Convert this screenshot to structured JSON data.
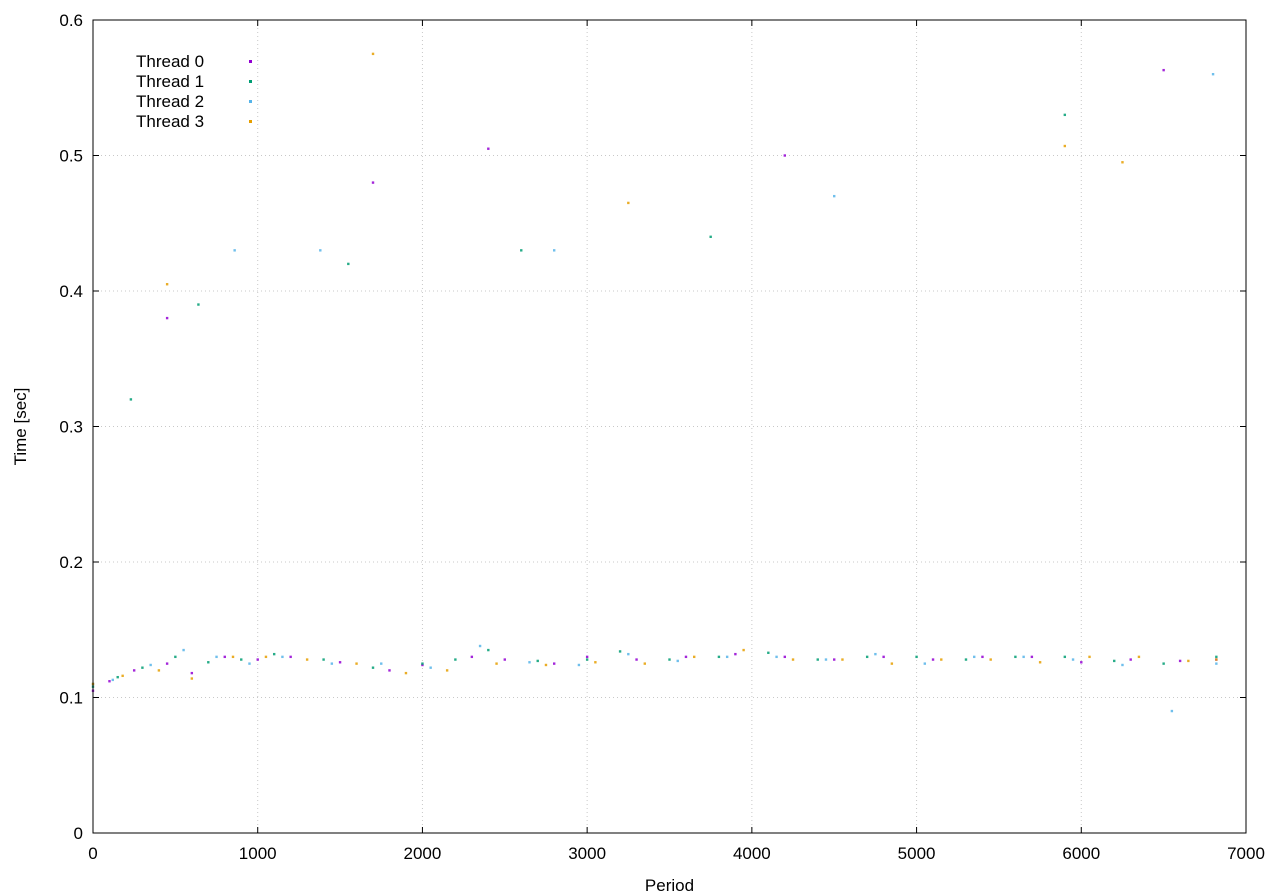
{
  "chart_data": {
    "type": "scatter",
    "title": "",
    "xlabel": "Period",
    "ylabel": "Time [sec]",
    "xlim": [
      0,
      7000
    ],
    "ylim": [
      0,
      0.6
    ],
    "xticks": [
      0,
      1000,
      2000,
      3000,
      4000,
      5000,
      6000,
      7000
    ],
    "yticks": [
      0,
      0.1,
      0.2,
      0.3,
      0.4,
      0.5,
      0.6
    ],
    "xtick_labels": [
      "0",
      "1000",
      "2000",
      "3000",
      "4000",
      "5000",
      "6000",
      "7000"
    ],
    "ytick_labels": [
      "0",
      "0.1",
      "0.2",
      "0.3",
      "0.4",
      "0.5",
      "0.6"
    ],
    "grid": true,
    "legend_position": "top-left",
    "series": [
      {
        "name": "Thread 0",
        "color": "#9400d3",
        "marker": "dot",
        "sample_points": [
          [
            0,
            0.105
          ],
          [
            100,
            0.112
          ],
          [
            250,
            0.12
          ],
          [
            450,
            0.125
          ],
          [
            600,
            0.118
          ],
          [
            800,
            0.13
          ],
          [
            1000,
            0.128
          ],
          [
            1200,
            0.13
          ],
          [
            1500,
            0.126
          ],
          [
            1800,
            0.12
          ],
          [
            2000,
            0.124
          ],
          [
            2300,
            0.13
          ],
          [
            2500,
            0.128
          ],
          [
            2800,
            0.125
          ],
          [
            3000,
            0.13
          ],
          [
            3300,
            0.128
          ],
          [
            3600,
            0.13
          ],
          [
            3900,
            0.132
          ],
          [
            4200,
            0.13
          ],
          [
            4500,
            0.128
          ],
          [
            4800,
            0.13
          ],
          [
            5100,
            0.128
          ],
          [
            5400,
            0.13
          ],
          [
            5700,
            0.13
          ],
          [
            6000,
            0.126
          ],
          [
            6300,
            0.128
          ],
          [
            6600,
            0.127
          ],
          [
            6820,
            0.128
          ],
          [
            450,
            0.38
          ],
          [
            1700,
            0.48
          ],
          [
            2400,
            0.505
          ],
          [
            4200,
            0.5
          ],
          [
            6500,
            0.563
          ]
        ]
      },
      {
        "name": "Thread 1",
        "color": "#009e73",
        "marker": "dot",
        "sample_points": [
          [
            0,
            0.108
          ],
          [
            150,
            0.115
          ],
          [
            300,
            0.122
          ],
          [
            500,
            0.13
          ],
          [
            700,
            0.126
          ],
          [
            900,
            0.128
          ],
          [
            1100,
            0.132
          ],
          [
            1400,
            0.128
          ],
          [
            1700,
            0.122
          ],
          [
            2000,
            0.125
          ],
          [
            2200,
            0.128
          ],
          [
            2400,
            0.135
          ],
          [
            2700,
            0.127
          ],
          [
            3000,
            0.128
          ],
          [
            3200,
            0.134
          ],
          [
            3500,
            0.128
          ],
          [
            3800,
            0.13
          ],
          [
            4100,
            0.133
          ],
          [
            4400,
            0.128
          ],
          [
            4700,
            0.13
          ],
          [
            5000,
            0.13
          ],
          [
            5300,
            0.128
          ],
          [
            5600,
            0.13
          ],
          [
            5900,
            0.13
          ],
          [
            6200,
            0.127
          ],
          [
            6500,
            0.125
          ],
          [
            6820,
            0.13
          ],
          [
            230,
            0.32
          ],
          [
            640,
            0.39
          ],
          [
            1550,
            0.42
          ],
          [
            2600,
            0.43
          ],
          [
            3750,
            0.44
          ],
          [
            5900,
            0.53
          ]
        ]
      },
      {
        "name": "Thread 2",
        "color": "#56b4e9",
        "marker": "dot",
        "sample_points": [
          [
            0,
            0.11
          ],
          [
            120,
            0.113
          ],
          [
            350,
            0.124
          ],
          [
            550,
            0.135
          ],
          [
            750,
            0.13
          ],
          [
            950,
            0.125
          ],
          [
            1150,
            0.13
          ],
          [
            1450,
            0.125
          ],
          [
            1750,
            0.125
          ],
          [
            2050,
            0.122
          ],
          [
            2350,
            0.138
          ],
          [
            2650,
            0.126
          ],
          [
            2950,
            0.124
          ],
          [
            3250,
            0.132
          ],
          [
            3550,
            0.127
          ],
          [
            3850,
            0.13
          ],
          [
            4150,
            0.13
          ],
          [
            4450,
            0.128
          ],
          [
            4750,
            0.132
          ],
          [
            5050,
            0.125
          ],
          [
            5350,
            0.13
          ],
          [
            5650,
            0.13
          ],
          [
            5950,
            0.128
          ],
          [
            6250,
            0.124
          ],
          [
            6550,
            0.09
          ],
          [
            6820,
            0.125
          ],
          [
            860,
            0.43
          ],
          [
            1380,
            0.43
          ],
          [
            2800,
            0.43
          ],
          [
            4500,
            0.47
          ],
          [
            6800,
            0.56
          ]
        ]
      },
      {
        "name": "Thread 3",
        "color": "#e69f00",
        "marker": "dot",
        "sample_points": [
          [
            0,
            0.11
          ],
          [
            180,
            0.116
          ],
          [
            400,
            0.12
          ],
          [
            600,
            0.114
          ],
          [
            850,
            0.13
          ],
          [
            1050,
            0.13
          ],
          [
            1300,
            0.128
          ],
          [
            1600,
            0.125
          ],
          [
            1900,
            0.118
          ],
          [
            2150,
            0.12
          ],
          [
            2450,
            0.125
          ],
          [
            2750,
            0.124
          ],
          [
            3050,
            0.126
          ],
          [
            3350,
            0.125
          ],
          [
            3650,
            0.13
          ],
          [
            3950,
            0.135
          ],
          [
            4250,
            0.128
          ],
          [
            4550,
            0.128
          ],
          [
            4850,
            0.125
          ],
          [
            5150,
            0.128
          ],
          [
            5450,
            0.128
          ],
          [
            5750,
            0.126
          ],
          [
            6050,
            0.13
          ],
          [
            6350,
            0.13
          ],
          [
            6650,
            0.127
          ],
          [
            6820,
            0.128
          ],
          [
            450,
            0.405
          ],
          [
            1700,
            0.575
          ],
          [
            3250,
            0.465
          ],
          [
            5900,
            0.507
          ],
          [
            6250,
            0.495
          ]
        ]
      }
    ]
  }
}
